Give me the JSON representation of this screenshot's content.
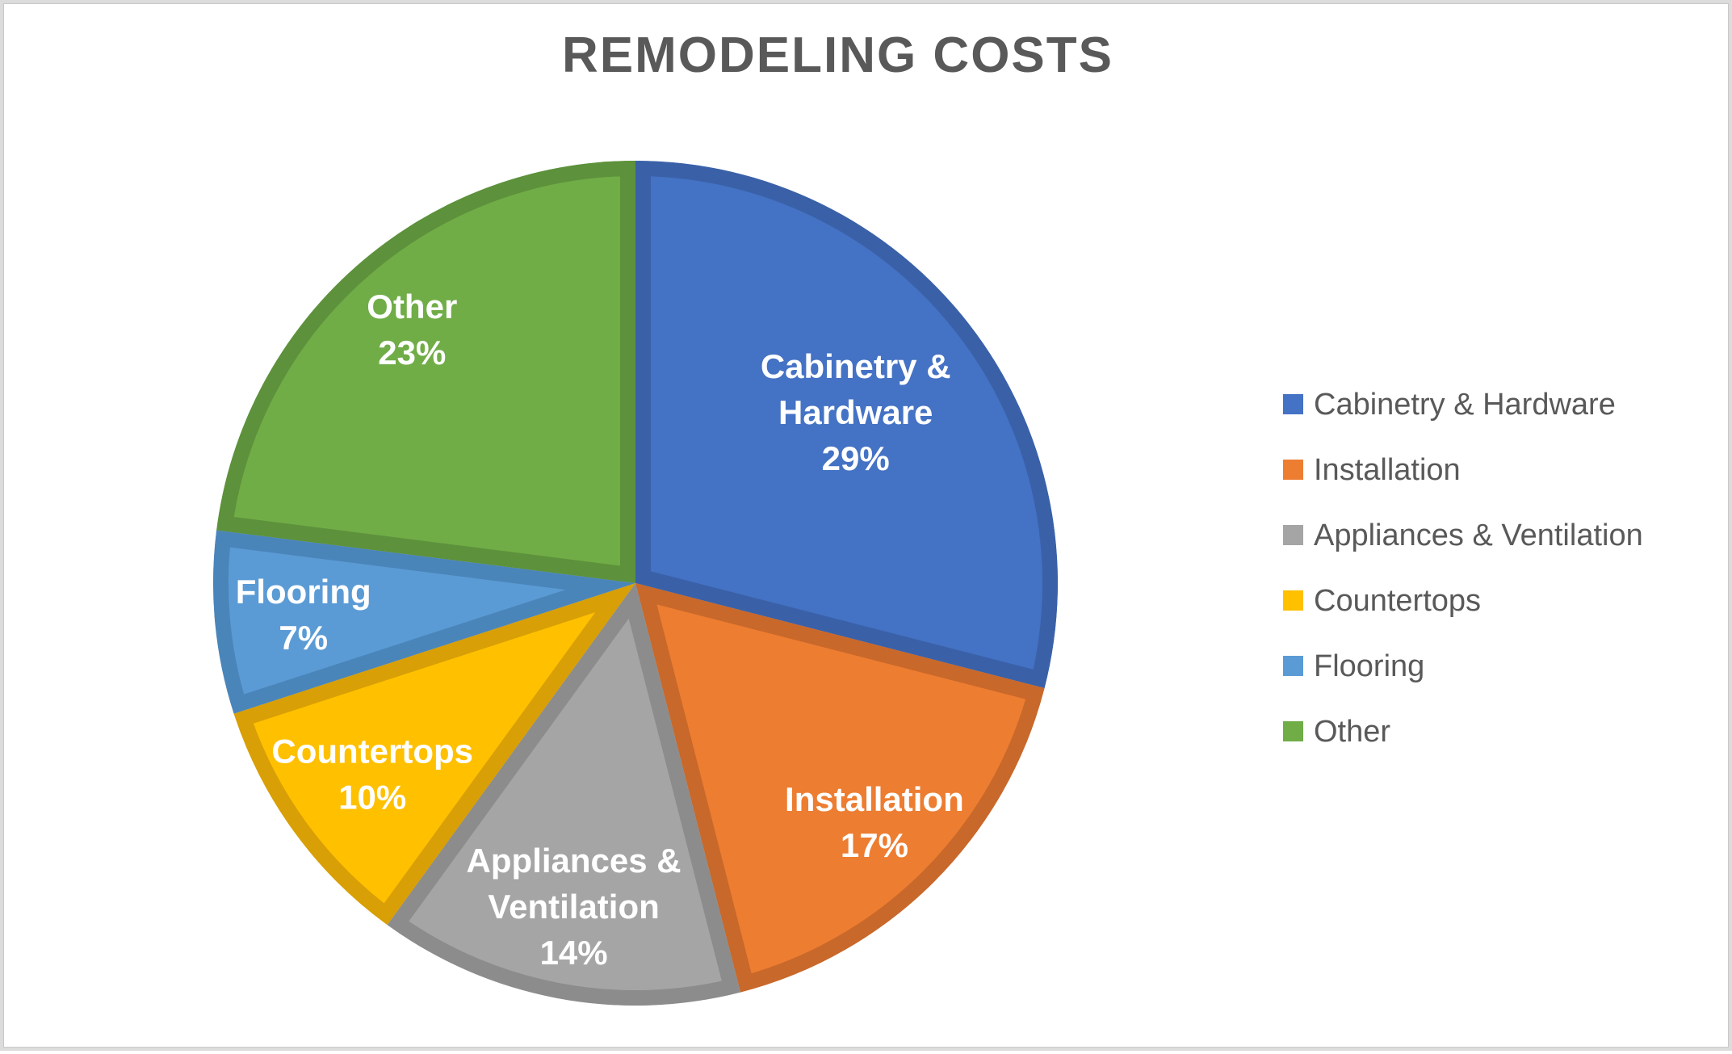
{
  "title": {
    "text": "REMODELING COSTS",
    "color": "#595959"
  },
  "frame": {
    "background": "#ffffff",
    "border_color": "#dcdcdc"
  },
  "chart_data": {
    "type": "pie",
    "title": "REMODELING COSTS",
    "unit": "percent",
    "start_angle": "top (12 o'clock)",
    "direction": "clockwise",
    "data_label_color": "#ffffff",
    "legend_position": "right",
    "legend_text_color": "#595959",
    "slices": [
      {
        "label": "Cabinetry & Hardware",
        "value": 29,
        "display": "29%",
        "label_lines": [
          "Cabinetry &",
          "Hardware",
          "29%"
        ],
        "color": "#4472C4",
        "border_color": "#3A61A8"
      },
      {
        "label": "Installation",
        "value": 17,
        "display": "17%",
        "label_lines": [
          "Installation",
          "17%"
        ],
        "color": "#ED7D31",
        "border_color": "#C8682A"
      },
      {
        "label": "Appliances & Ventilation",
        "value": 14,
        "display": "14%",
        "label_lines": [
          "Appliances &",
          "Ventilation",
          "14%"
        ],
        "color": "#A5A5A5",
        "border_color": "#8C8C8C"
      },
      {
        "label": "Countertops",
        "value": 10,
        "display": "10%",
        "label_lines": [
          "Countertops",
          "10%"
        ],
        "color": "#FFC000",
        "border_color": "#D89F06"
      },
      {
        "label": "Flooring",
        "value": 7,
        "display": "7%",
        "label_lines": [
          "Flooring",
          "7%"
        ],
        "color": "#5B9BD5",
        "border_color": "#4A85BA"
      },
      {
        "label": "Other",
        "value": 23,
        "display": "23%",
        "label_lines": [
          "Other",
          "23%"
        ],
        "color": "#70AD47",
        "border_color": "#5D913B"
      }
    ]
  }
}
